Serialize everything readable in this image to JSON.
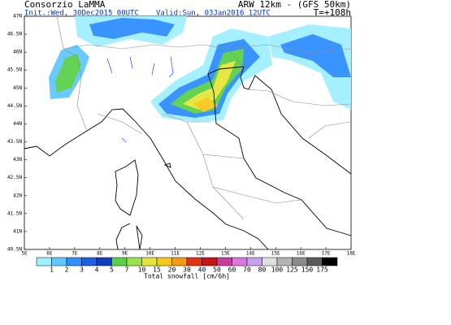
{
  "header": {
    "left_title": "Consorzio LaMMA",
    "right_title": "ARW 12km - (GFS 50km)",
    "init": "Init.:Wed, 30Dec2015 00UTC",
    "valid": "Valid:Sun, 03Jan2016 12UTC",
    "lead": "T=+108h"
  },
  "map": {
    "lat_labels": [
      "47N",
      "46.5N",
      "46N",
      "45.5N",
      "45N",
      "44.5N",
      "44N",
      "43.5N",
      "43N",
      "42.5N",
      "42N",
      "41.5N",
      "41N",
      "40.5N"
    ],
    "lon_labels": [
      "5E",
      "6E",
      "7E",
      "8E",
      "9E",
      "10E",
      "11E",
      "12E",
      "13E",
      "14E",
      "15E",
      "16E",
      "17E",
      "18E"
    ]
  },
  "legend": {
    "title": "Total snowfall [cm/6h]",
    "levels": [
      1,
      2,
      3,
      4,
      5,
      7,
      10,
      15,
      20,
      30,
      40,
      50,
      60,
      70,
      80,
      100,
      125,
      150,
      175
    ],
    "colors": [
      "#a0f0ff",
      "#60c8ff",
      "#2f8fff",
      "#1c5fe8",
      "#0f3fc0",
      "#5cd04a",
      "#9be34a",
      "#e6e63a",
      "#f5c81e",
      "#f59a14",
      "#e63214",
      "#c81414",
      "#c83c9c",
      "#dc78dc",
      "#c8a0f0",
      "#e0e0e0",
      "#b4b4b4",
      "#8c8c8c",
      "#5a5a5a",
      "#000000"
    ]
  }
}
